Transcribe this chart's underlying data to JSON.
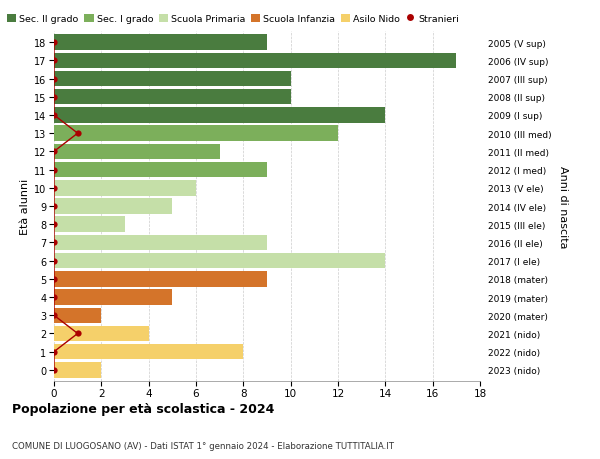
{
  "title": "Popolazione per età scolastica - 2024",
  "subtitle": "COMUNE DI LUOGOSANO (AV) - Dati ISTAT 1° gennaio 2024 - Elaborazione TUTTITALIA.IT",
  "ylabel_left": "Età alunni",
  "ylabel_right": "Anni di nascita",
  "xlim": [
    0,
    18
  ],
  "xticks": [
    0,
    2,
    4,
    6,
    8,
    10,
    12,
    14,
    16,
    18
  ],
  "ages": [
    18,
    17,
    16,
    15,
    14,
    13,
    12,
    11,
    10,
    9,
    8,
    7,
    6,
    5,
    4,
    3,
    2,
    1,
    0
  ],
  "right_labels": [
    "2005 (V sup)",
    "2006 (IV sup)",
    "2007 (III sup)",
    "2008 (II sup)",
    "2009 (I sup)",
    "2010 (III med)",
    "2011 (II med)",
    "2012 (I med)",
    "2013 (V ele)",
    "2014 (IV ele)",
    "2015 (III ele)",
    "2016 (II ele)",
    "2017 (I ele)",
    "2018 (mater)",
    "2019 (mater)",
    "2020 (mater)",
    "2021 (nido)",
    "2022 (nido)",
    "2023 (nido)"
  ],
  "bar_values": [
    9,
    17,
    10,
    10,
    14,
    12,
    7,
    9,
    6,
    5,
    3,
    9,
    14,
    9,
    5,
    2,
    4,
    8,
    2
  ],
  "bar_colors": [
    "#4a7c3f",
    "#4a7c3f",
    "#4a7c3f",
    "#4a7c3f",
    "#4a7c3f",
    "#7caf5b",
    "#7caf5b",
    "#7caf5b",
    "#c5dfa8",
    "#c5dfa8",
    "#c5dfa8",
    "#c5dfa8",
    "#c5dfa8",
    "#d4742a",
    "#d4742a",
    "#d4742a",
    "#f5d06a",
    "#f5d06a",
    "#f5d06a"
  ],
  "stranieri_values": [
    0,
    0,
    0,
    0,
    0,
    1,
    0,
    0,
    0,
    0,
    0,
    0,
    0,
    0,
    0,
    0,
    1,
    0,
    0
  ],
  "stranieri_color": "#aa0000",
  "legend_labels": [
    "Sec. II grado",
    "Sec. I grado",
    "Scuola Primaria",
    "Scuola Infanzia",
    "Asilo Nido",
    "Stranieri"
  ],
  "legend_colors": [
    "#4a7c3f",
    "#7caf5b",
    "#c5dfa8",
    "#d4742a",
    "#f5d06a",
    "#aa0000"
  ],
  "bg_color": "#ffffff",
  "grid_color": "#cccccc",
  "bar_height": 0.85
}
